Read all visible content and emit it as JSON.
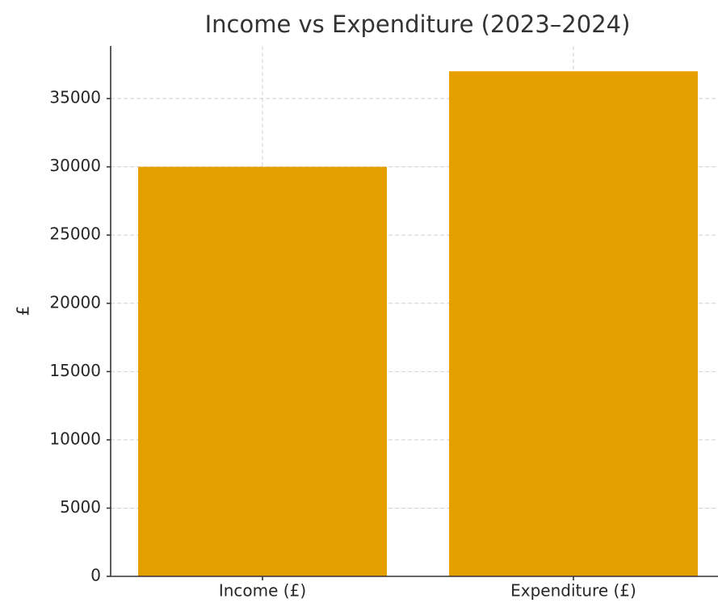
{
  "chart_data": {
    "type": "bar",
    "title": "Income vs Expenditure (2023–2024)",
    "ylabel": "£",
    "categories": [
      "Income (£)",
      "Expenditure (£)"
    ],
    "values": [
      30000,
      37000
    ],
    "color": "#e69f00",
    "ylim": [
      0,
      38850
    ],
    "yticks": [
      0,
      5000,
      10000,
      15000,
      20000,
      25000,
      30000,
      35000
    ],
    "grid": true
  }
}
